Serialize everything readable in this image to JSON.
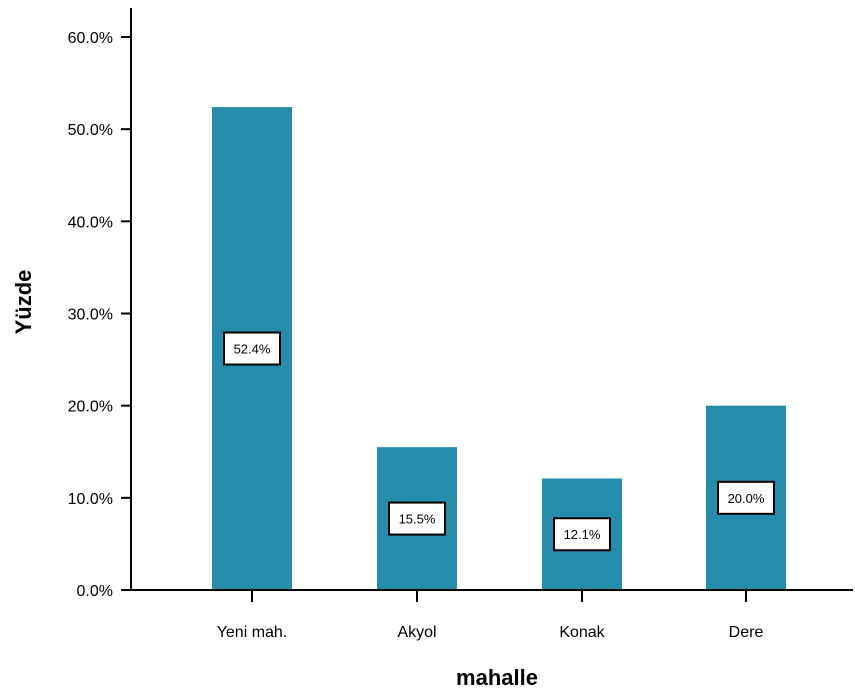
{
  "chart_data": {
    "type": "bar",
    "xlabel": "mahalle",
    "ylabel": "Yüzde",
    "categories": [
      "Yeni mah.",
      "Akyol",
      "Konak",
      "Dere"
    ],
    "values": [
      52.4,
      15.5,
      12.1,
      20.0
    ],
    "data_labels": [
      "52.4%",
      "15.5%",
      "12.1%",
      "20.0%"
    ],
    "yticks": [
      0,
      10,
      20,
      30,
      40,
      50,
      60
    ],
    "ytick_labels": [
      "0.0%",
      "10.0%",
      "20.0%",
      "30.0%",
      "40.0%",
      "50.0%",
      "60.0%"
    ],
    "ylim": [
      0,
      60
    ],
    "grid": false,
    "colors": {
      "bar": "#268cac",
      "axis": "#000000"
    }
  }
}
